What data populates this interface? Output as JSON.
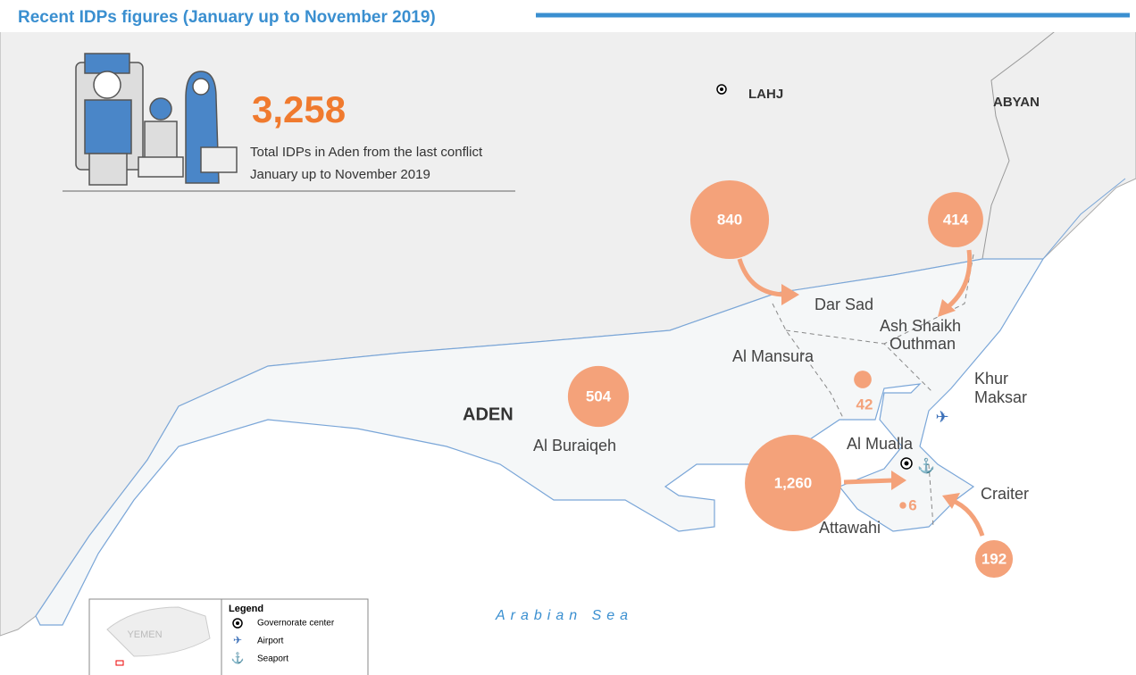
{
  "title": "Recent IDPs figures (January up to November 2019)",
  "total": {
    "value": "3,258",
    "caption": [
      "Total IDPs in Aden from the last conflict",
      "January up to November 2019"
    ]
  },
  "places": {
    "lahj": "LAHJ",
    "abyan": "ABYAN",
    "aden": "ADEN",
    "sea": "Arabian Sea"
  },
  "districts": [
    {
      "lines": [
        "Dar Sad"
      ]
    },
    {
      "lines": [
        "Ash Shaikh",
        "Outhman"
      ]
    },
    {
      "lines": [
        "Al Mansura"
      ]
    },
    {
      "lines": [
        "Khur",
        "Maksar"
      ]
    },
    {
      "lines": [
        "Al Buraiqeh"
      ]
    },
    {
      "lines": [
        "Al Mualla"
      ]
    },
    {
      "lines": [
        "Craiter"
      ]
    },
    {
      "lines": [
        "Attawahi"
      ]
    }
  ],
  "figures": [
    {
      "value": 840,
      "label": "840"
    },
    {
      "value": 414,
      "label": "414"
    },
    {
      "value": 504,
      "label": "504"
    },
    {
      "value": 1260,
      "label": "1,260"
    },
    {
      "value": 42,
      "label": "42"
    },
    {
      "value": 6,
      "label": "6"
    },
    {
      "value": 192,
      "label": "192"
    }
  ],
  "legend": {
    "title": "Legend",
    "items": [
      "Governorate center",
      "Airport",
      "Seaport"
    ]
  },
  "inset": "YEMEN"
}
